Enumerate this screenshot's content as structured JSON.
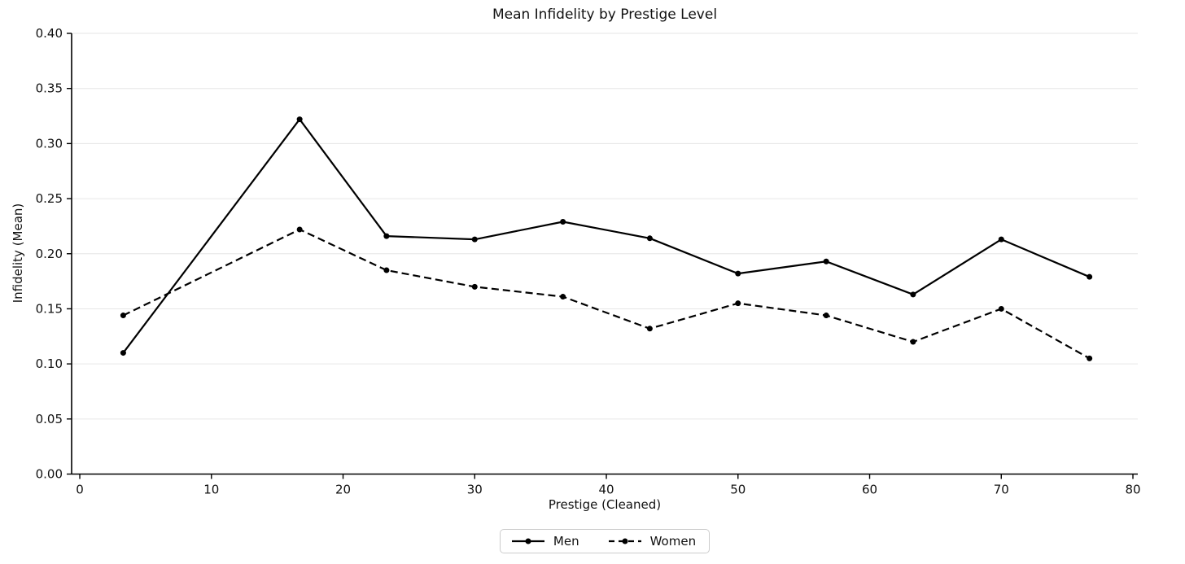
{
  "chart_data": {
    "type": "line",
    "title": "Mean Infidelity by Prestige Level",
    "xlabel": "Prestige (Cleaned)",
    "ylabel": "Infidelity (Mean)",
    "xlim": [
      0,
      80
    ],
    "ylim": [
      0.0,
      0.4
    ],
    "grid": "horizontal-only",
    "legend_position": "bottom-center",
    "x": [
      3.3,
      16.7,
      23.3,
      30.0,
      36.7,
      43.3,
      50.0,
      56.7,
      63.3,
      70.0,
      76.7
    ],
    "series": [
      {
        "name": "Men",
        "line_style": "solid",
        "marker": "circle",
        "color": "#000000",
        "values": [
          0.11,
          0.322,
          0.216,
          0.213,
          0.229,
          0.214,
          0.182,
          0.193,
          0.163,
          0.213,
          0.179
        ]
      },
      {
        "name": "Women",
        "line_style": "dashed",
        "marker": "circle",
        "color": "#000000",
        "values": [
          0.144,
          0.222,
          0.185,
          0.17,
          0.161,
          0.132,
          0.155,
          0.144,
          0.12,
          0.15,
          0.105
        ]
      }
    ],
    "xticks": {
      "values": [
        0,
        10,
        20,
        30,
        40,
        50,
        60,
        70,
        80
      ],
      "labels": [
        "0",
        "10",
        "20",
        "30",
        "40",
        "50",
        "60",
        "70",
        "80"
      ]
    },
    "yticks": {
      "values": [
        0.0,
        0.05,
        0.1,
        0.15,
        0.2,
        0.25,
        0.3,
        0.35,
        0.4
      ],
      "labels": [
        "0.00",
        "0.05",
        "0.10",
        "0.15",
        "0.20",
        "0.25",
        "0.30",
        "0.35",
        "0.40"
      ]
    },
    "colors": {
      "line": "#000000",
      "grid": "#e6e6e6",
      "spine": "#000000",
      "text": "#111111",
      "legend_border": "#cccccc",
      "background": "#ffffff"
    }
  }
}
